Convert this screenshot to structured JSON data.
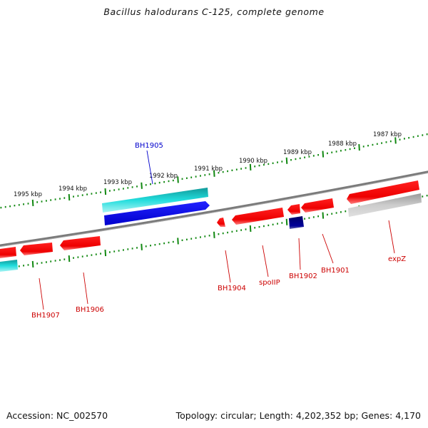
{
  "title": "Bacillus halodurans C-125, complete genome",
  "footer": {
    "accession": "Accession: NC_002570",
    "summary": "Topology: circular; Length: 4,202,352 bp; Genes: 4,170"
  },
  "scale_labels": [
    "1987 kbp",
    "1988 kbp",
    "1989 kbp",
    "1990 kbp",
    "1991 kbp",
    "1992 kbp",
    "1993 kbp",
    "1994 kbp",
    "1995 kbp"
  ],
  "gene_labels": [
    "BH1905",
    "BH1904",
    "spoIIP",
    "BH1902",
    "BH1901",
    "expZ",
    "BH1907",
    "BH1906"
  ],
  "colors": {
    "forward_gene": "#00cccc",
    "reverse_gene": "#ff0000",
    "selected_gene": "#0000ee",
    "dark_gene": "#000080",
    "pseudo_gene": "#bbbbbb",
    "backbone": "#777777",
    "ticks": "#118811",
    "label_blue": "#0000cc",
    "label_red": "#cc0000"
  }
}
